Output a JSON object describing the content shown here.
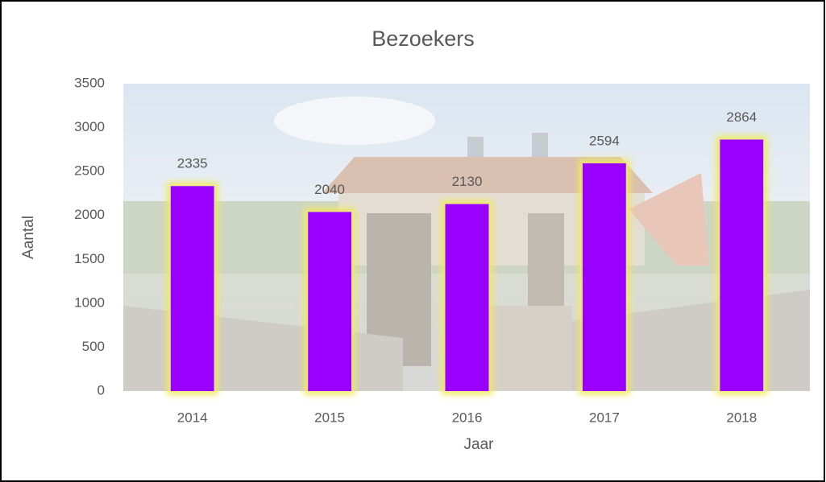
{
  "chart_data": {
    "type": "bar",
    "title": "Bezoekers",
    "x_label": "Jaar",
    "y_label": "Aantal",
    "categories": [
      "2014",
      "2015",
      "2016",
      "2017",
      "2018"
    ],
    "values": [
      2335,
      2040,
      2130,
      2594,
      2864
    ],
    "color": "#9900ff",
    "ylim": [
      0,
      3500
    ],
    "yticks": [
      0,
      500,
      1000,
      1500,
      2000,
      2500,
      3000,
      3500
    ],
    "grid": false
  }
}
